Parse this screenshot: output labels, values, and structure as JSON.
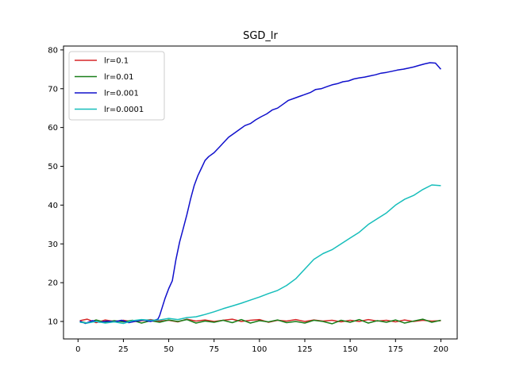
{
  "chart_data": {
    "type": "line",
    "title": "SGD_lr",
    "xlabel": "",
    "ylabel": "",
    "xlim": [
      -8,
      209
    ],
    "ylim": [
      5.5,
      81
    ],
    "xticks": [
      0,
      25,
      50,
      75,
      100,
      125,
      150,
      175,
      200
    ],
    "yticks": [
      10,
      20,
      30,
      40,
      50,
      60,
      70,
      80
    ],
    "grid": false,
    "legend_position": "top-left",
    "series": [
      {
        "name": "lr=0.1",
        "color": "#d62728",
        "points": [
          [
            1,
            10.2
          ],
          [
            5,
            10.6
          ],
          [
            10,
            9.7
          ],
          [
            15,
            10.4
          ],
          [
            20,
            10.0
          ],
          [
            25,
            10.3
          ],
          [
            30,
            9.9
          ],
          [
            35,
            10.2
          ],
          [
            40,
            10.5
          ],
          [
            45,
            10.1
          ],
          [
            50,
            10.3
          ],
          [
            55,
            9.9
          ],
          [
            60,
            10.6
          ],
          [
            65,
            10.1
          ],
          [
            70,
            10.4
          ],
          [
            75,
            10.0
          ],
          [
            80,
            10.3
          ],
          [
            85,
            10.6
          ],
          [
            90,
            10.0
          ],
          [
            95,
            10.3
          ],
          [
            100,
            10.5
          ],
          [
            105,
            9.8
          ],
          [
            110,
            10.3
          ],
          [
            115,
            10.1
          ],
          [
            120,
            10.5
          ],
          [
            125,
            10.0
          ],
          [
            130,
            10.4
          ],
          [
            135,
            10.1
          ],
          [
            140,
            10.3
          ],
          [
            145,
            9.9
          ],
          [
            150,
            10.3
          ],
          [
            155,
            10.0
          ],
          [
            160,
            10.5
          ],
          [
            165,
            10.1
          ],
          [
            170,
            10.3
          ],
          [
            175,
            9.9
          ],
          [
            180,
            10.4
          ],
          [
            185,
            10.0
          ],
          [
            190,
            10.3
          ],
          [
            195,
            10.1
          ],
          [
            200,
            10.2
          ]
        ]
      },
      {
        "name": "lr=0.01",
        "color": "#1a7f1a",
        "points": [
          [
            1,
            10.0
          ],
          [
            5,
            9.6
          ],
          [
            10,
            10.4
          ],
          [
            15,
            9.8
          ],
          [
            20,
            10.2
          ],
          [
            25,
            9.9
          ],
          [
            30,
            10.3
          ],
          [
            35,
            9.6
          ],
          [
            40,
            10.2
          ],
          [
            45,
            9.8
          ],
          [
            50,
            10.4
          ],
          [
            55,
            10.0
          ],
          [
            60,
            10.5
          ],
          [
            65,
            9.6
          ],
          [
            70,
            10.1
          ],
          [
            75,
            9.8
          ],
          [
            80,
            10.3
          ],
          [
            85,
            9.7
          ],
          [
            90,
            10.5
          ],
          [
            95,
            9.6
          ],
          [
            100,
            10.2
          ],
          [
            105,
            9.9
          ],
          [
            110,
            10.4
          ],
          [
            115,
            9.7
          ],
          [
            120,
            10.0
          ],
          [
            125,
            9.6
          ],
          [
            130,
            10.3
          ],
          [
            135,
            10.0
          ],
          [
            140,
            9.4
          ],
          [
            145,
            10.3
          ],
          [
            150,
            9.8
          ],
          [
            155,
            10.5
          ],
          [
            160,
            9.6
          ],
          [
            165,
            10.2
          ],
          [
            170,
            9.8
          ],
          [
            175,
            10.4
          ],
          [
            180,
            9.6
          ],
          [
            185,
            10.1
          ],
          [
            190,
            10.6
          ],
          [
            195,
            9.8
          ],
          [
            200,
            10.3
          ]
        ]
      },
      {
        "name": "lr=0.001",
        "color": "#1010cc",
        "points": [
          [
            1,
            10.1
          ],
          [
            4,
            9.5
          ],
          [
            8,
            10.2
          ],
          [
            12,
            9.8
          ],
          [
            16,
            10.1
          ],
          [
            20,
            9.9
          ],
          [
            24,
            10.3
          ],
          [
            28,
            9.7
          ],
          [
            32,
            10.1
          ],
          [
            36,
            10.4
          ],
          [
            40,
            10.0
          ],
          [
            44,
            10.6
          ],
          [
            45,
            11.5
          ],
          [
            46,
            13.0
          ],
          [
            48,
            16.0
          ],
          [
            50,
            18.5
          ],
          [
            52,
            20.5
          ],
          [
            54,
            26.0
          ],
          [
            56,
            30.5
          ],
          [
            58,
            34.0
          ],
          [
            60,
            37.5
          ],
          [
            62,
            41.5
          ],
          [
            64,
            45.0
          ],
          [
            66,
            47.5
          ],
          [
            68,
            49.5
          ],
          [
            70,
            51.5
          ],
          [
            72,
            52.5
          ],
          [
            75,
            53.5
          ],
          [
            78,
            55.0
          ],
          [
            80,
            56.0
          ],
          [
            83,
            57.5
          ],
          [
            86,
            58.5
          ],
          [
            89,
            59.5
          ],
          [
            92,
            60.5
          ],
          [
            95,
            61.0
          ],
          [
            98,
            62.0
          ],
          [
            101,
            62.8
          ],
          [
            104,
            63.5
          ],
          [
            107,
            64.5
          ],
          [
            110,
            65.0
          ],
          [
            113,
            66.0
          ],
          [
            116,
            67.0
          ],
          [
            119,
            67.5
          ],
          [
            122,
            68.0
          ],
          [
            125,
            68.5
          ],
          [
            128,
            69.0
          ],
          [
            131,
            69.8
          ],
          [
            134,
            70.0
          ],
          [
            137,
            70.5
          ],
          [
            140,
            71.0
          ],
          [
            143,
            71.3
          ],
          [
            146,
            71.8
          ],
          [
            149,
            72.0
          ],
          [
            152,
            72.5
          ],
          [
            155,
            72.8
          ],
          [
            158,
            73.0
          ],
          [
            161,
            73.3
          ],
          [
            164,
            73.6
          ],
          [
            167,
            74.0
          ],
          [
            170,
            74.2
          ],
          [
            173,
            74.5
          ],
          [
            176,
            74.8
          ],
          [
            179,
            75.0
          ],
          [
            182,
            75.3
          ],
          [
            185,
            75.6
          ],
          [
            188,
            76.0
          ],
          [
            191,
            76.4
          ],
          [
            194,
            76.7
          ],
          [
            197,
            76.6
          ],
          [
            200,
            75.0
          ]
        ]
      },
      {
        "name": "lr=0.0001",
        "color": "#17bebb",
        "points": [
          [
            1,
            9.8
          ],
          [
            5,
            9.6
          ],
          [
            10,
            10.0
          ],
          [
            15,
            9.6
          ],
          [
            20,
            9.9
          ],
          [
            25,
            9.5
          ],
          [
            30,
            10.2
          ],
          [
            35,
            10.5
          ],
          [
            40,
            10.3
          ],
          [
            45,
            10.4
          ],
          [
            50,
            10.8
          ],
          [
            55,
            10.5
          ],
          [
            60,
            11.0
          ],
          [
            65,
            11.2
          ],
          [
            70,
            11.8
          ],
          [
            75,
            12.5
          ],
          [
            80,
            13.3
          ],
          [
            85,
            14.0
          ],
          [
            90,
            14.7
          ],
          [
            95,
            15.5
          ],
          [
            100,
            16.3
          ],
          [
            105,
            17.2
          ],
          [
            110,
            18.0
          ],
          [
            115,
            19.3
          ],
          [
            120,
            21.0
          ],
          [
            125,
            23.5
          ],
          [
            130,
            26.0
          ],
          [
            135,
            27.5
          ],
          [
            140,
            28.5
          ],
          [
            145,
            30.0
          ],
          [
            150,
            31.5
          ],
          [
            155,
            33.0
          ],
          [
            160,
            35.0
          ],
          [
            165,
            36.5
          ],
          [
            170,
            38.0
          ],
          [
            175,
            40.0
          ],
          [
            180,
            41.5
          ],
          [
            185,
            42.5
          ],
          [
            190,
            44.0
          ],
          [
            195,
            45.2
          ],
          [
            200,
            45.0
          ]
        ]
      }
    ]
  }
}
